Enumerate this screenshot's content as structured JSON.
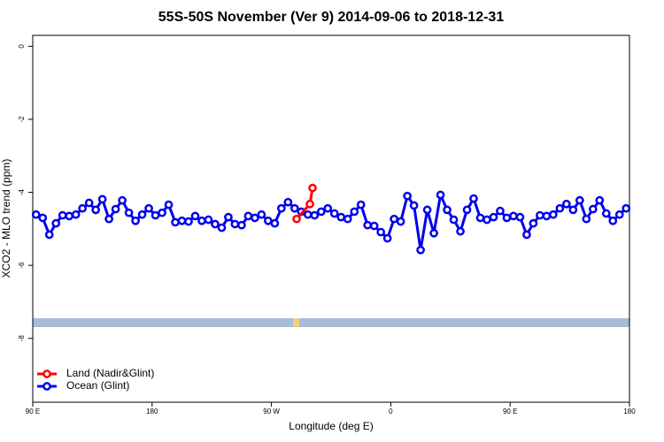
{
  "chart_data": {
    "type": "line",
    "title": "55S-50S November (Ver 9)   2014-09-06 to 2018-12-31",
    "x_label": "Longitude (deg E)",
    "y_label": "XCO2 - MLO trend (ppm)",
    "xlim": [
      90,
      540
    ],
    "ylim": [
      -9.75,
      0.3
    ],
    "xticks": [
      {
        "value": 90,
        "label": "90 E"
      },
      {
        "value": 180,
        "label": "180"
      },
      {
        "value": 270,
        "label": "90 W"
      },
      {
        "value": 360,
        "label": "0"
      },
      {
        "value": 450,
        "label": "90 E"
      },
      {
        "value": 540,
        "label": "180"
      }
    ],
    "yticks": [
      0,
      -2,
      -4,
      -6,
      -8
    ],
    "legend": "bottom-left",
    "series": [
      {
        "name": "Land (Nadir&Glint)",
        "color": "#ff0000",
        "x": [
          289,
          299,
          301
        ],
        "values": [
          -4.73,
          -4.32,
          -3.88
        ]
      },
      {
        "name": "Ocean (Glint)",
        "color": "#0000ee",
        "x": [
          92.5,
          97.5,
          102.5,
          107.5,
          112.5,
          117.5,
          122.5,
          127.5,
          132.5,
          137.5,
          142.5,
          147.5,
          152.5,
          157.5,
          162.5,
          167.5,
          172.5,
          177.5,
          182.5,
          187.5,
          192.5,
          197.5,
          202.5,
          207.5,
          212.5,
          217.5,
          222.5,
          227.5,
          232.5,
          237.5,
          242.5,
          247.5,
          252.5,
          257.5,
          262.5,
          267.5,
          272.5,
          277.5,
          282.5,
          287.5,
          292.5,
          297.5,
          302.5,
          307.5,
          312.5,
          317.5,
          322.5,
          327.5,
          332.5,
          337.5,
          342.5,
          347.5,
          352.5,
          357.5,
          362.5,
          367.5,
          372.5,
          377.5,
          382.5,
          387.5,
          392.5,
          397.5,
          402.5,
          407.5,
          412.5,
          417.5,
          422.5,
          427.5,
          432.5,
          437.5,
          442.5,
          447.5,
          452.5,
          457.5,
          462.5,
          467.5,
          472.5,
          477.5,
          482.5,
          487.5,
          492.5,
          497.5,
          502.5,
          507.5,
          512.5,
          517.5,
          522.5,
          527.5,
          532.5,
          537.5
        ],
        "values": [
          -4.61,
          -4.7,
          -5.16,
          -4.85,
          -4.63,
          -4.65,
          -4.61,
          -4.44,
          -4.29,
          -4.48,
          -4.19,
          -4.73,
          -4.46,
          -4.22,
          -4.56,
          -4.78,
          -4.61,
          -4.44,
          -4.63,
          -4.56,
          -4.34,
          -4.82,
          -4.78,
          -4.8,
          -4.65,
          -4.78,
          -4.75,
          -4.87,
          -4.97,
          -4.68,
          -4.87,
          -4.9,
          -4.65,
          -4.7,
          -4.61,
          -4.78,
          -4.85,
          -4.44,
          -4.27,
          -4.44,
          -4.53,
          -4.61,
          -4.63,
          -4.53,
          -4.44,
          -4.58,
          -4.68,
          -4.73,
          -4.53,
          -4.34,
          -4.9,
          -4.92,
          -5.09,
          -5.26,
          -4.73,
          -4.8,
          -4.1,
          -4.36,
          -5.58,
          -4.48,
          -5.12,
          -4.07,
          -4.48,
          -4.75,
          -5.07,
          -4.48,
          -4.17,
          -4.7,
          -4.75,
          -4.68,
          -4.51,
          -4.7,
          -4.65,
          -4.68,
          -5.16,
          -4.85,
          -4.63,
          -4.65,
          -4.61,
          -4.44,
          -4.32,
          -4.48,
          -4.22,
          -4.73,
          -4.46,
          -4.22,
          -4.58,
          -4.78,
          -4.61,
          -4.44
        ]
      }
    ]
  }
}
